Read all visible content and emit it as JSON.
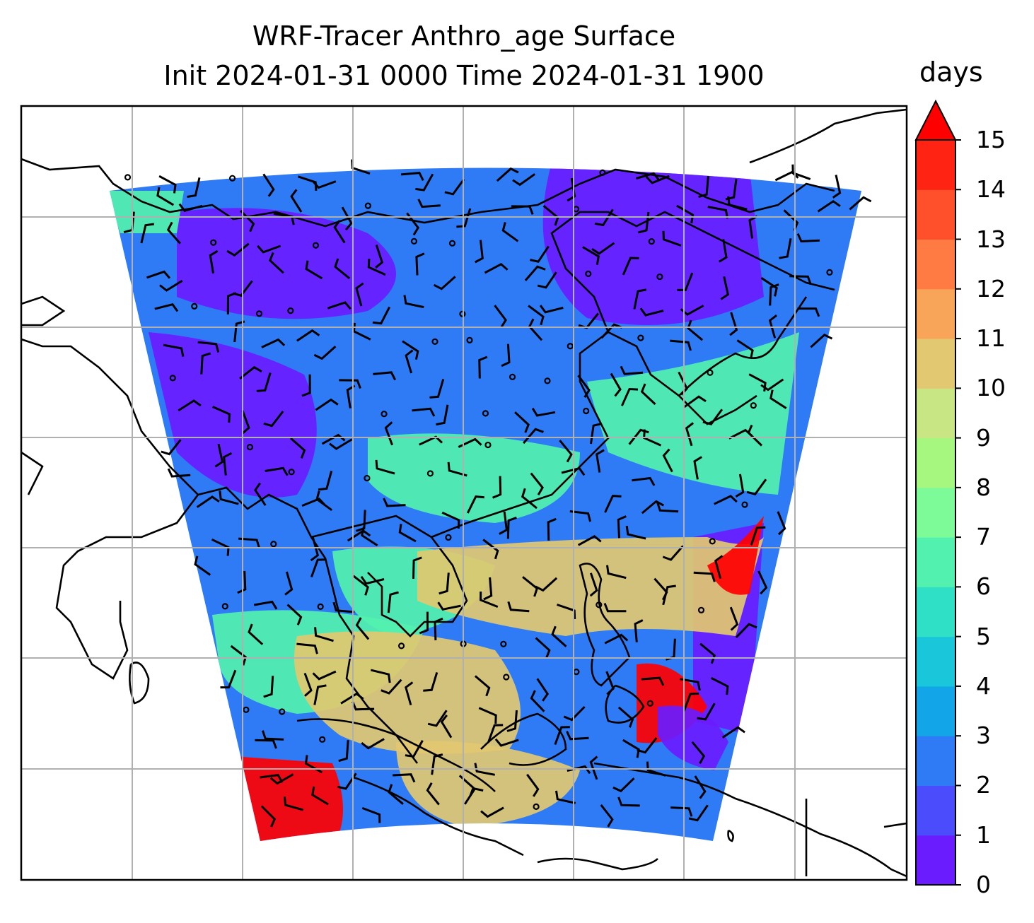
{
  "title": {
    "line1": "WRF-Tracer Anthro_age Surface",
    "line2": "Init 2024-01-31 0000 Time 2024-01-31 1900"
  },
  "colorbar": {
    "units": "days",
    "min": 0,
    "max": 15,
    "extend": "max",
    "tick_labels": [
      "0",
      "1",
      "2",
      "3",
      "4",
      "5",
      "6",
      "7",
      "8",
      "9",
      "10",
      "11",
      "12",
      "13",
      "14",
      "15"
    ],
    "colors": [
      "#6a1cff",
      "#4b4cfc",
      "#2f7bf6",
      "#12a6e8",
      "#1ac7da",
      "#2fdfc6",
      "#52f1af",
      "#7dfb98",
      "#a5f77f",
      "#c8e683",
      "#e2c870",
      "#f8a55a",
      "#ff7b43",
      "#ff4f2b",
      "#ff2314"
    ],
    "extend_color": "#ff0000"
  },
  "field_colors": {
    "min_age": "#6a1cff",
    "low_age": "#2f7bf6",
    "mid_age": "#52f1af",
    "high_age": "#e2c870",
    "max_age": "#ff0000"
  }
}
